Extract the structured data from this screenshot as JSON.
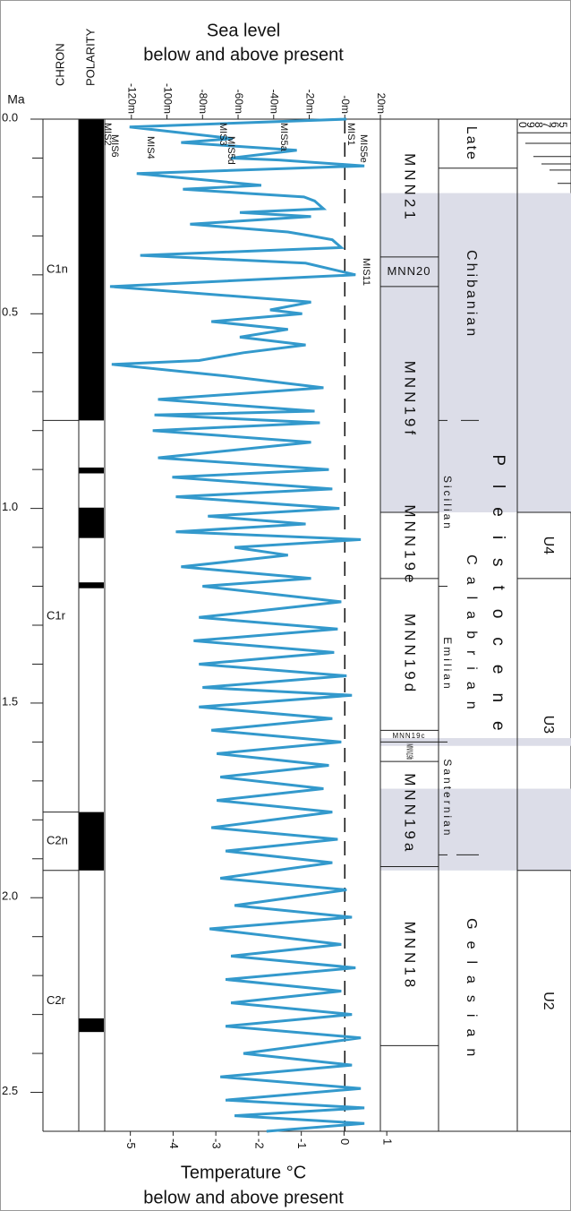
{
  "chart_data": {
    "type": "line",
    "title": "Sea level",
    "subtitle": "below and above present",
    "y_label": "Ma",
    "x2_label": "Temperature °C",
    "x2_sublabel": "below and above present",
    "ylim": [
      0,
      2.6
    ],
    "yticks": [
      {
        "value": 0,
        "label": "0.0"
      },
      0.5,
      {
        "value": 1,
        "label": "1.0"
      },
      1.5,
      {
        "value": 2,
        "label": "2.0"
      },
      2.5
    ],
    "yminor": [
      0.1,
      0.2,
      0.3,
      0.4,
      0.6,
      0.7,
      0.8,
      0.9,
      1.1,
      1.2,
      1.3,
      1.4,
      1.6,
      1.7,
      1.8,
      1.9,
      2.1,
      2.2,
      2.3,
      2.4
    ],
    "xlim": [
      -135,
      20
    ],
    "xticks": [
      {
        "value": -120,
        "label": "-120m"
      },
      {
        "value": -100,
        "label": "-100m"
      },
      {
        "value": -80,
        "label": "-80m"
      },
      {
        "value": -60,
        "label": "-60m"
      },
      {
        "value": -40,
        "label": "-40m"
      },
      {
        "value": -20,
        "label": "-20m"
      },
      {
        "value": 0,
        "label": "-0m"
      },
      {
        "value": 20,
        "label": "20m"
      }
    ],
    "x2lim": [
      -5.6,
      0.85
    ],
    "x2ticks": [
      -5,
      -4,
      -3,
      -2,
      -1,
      0,
      1
    ],
    "zero_line": true,
    "color": "#3399cc",
    "x": [
      0,
      0.02,
      0.05,
      0.06,
      0.08,
      0.1,
      0.105,
      0.12,
      0.14,
      0.17,
      0.18,
      0.19,
      0.2,
      0.21,
      0.23,
      0.24,
      0.25,
      0.27,
      0.29,
      0.3,
      0.31,
      0.33,
      0.35,
      0.37,
      0.4,
      0.43,
      0.47,
      0.49,
      0.5,
      0.52,
      0.54,
      0.56,
      0.58,
      0.6,
      0.62,
      0.63,
      0.66,
      0.69,
      0.72,
      0.75,
      0.76,
      0.78,
      0.8,
      0.83,
      0.87,
      0.9,
      0.92,
      0.95,
      0.97,
      1,
      1.02,
      1.04,
      1.06,
      1.08,
      1.1,
      1.12,
      1.15,
      1.18,
      1.2,
      1.24,
      1.28,
      1.31,
      1.34,
      1.37,
      1.4,
      1.43,
      1.46,
      1.48,
      1.51,
      1.54,
      1.57,
      1.6,
      1.63,
      1.66,
      1.69,
      1.72,
      1.75,
      1.78,
      1.82,
      1.85,
      1.88,
      1.91,
      1.95,
      1.98,
      2.02,
      2.05,
      2.08,
      2.12,
      2.15,
      2.18,
      2.21,
      2.24,
      2.27,
      2.3,
      2.33,
      2.36,
      2.4,
      2.43,
      2.46,
      2.49,
      2.52,
      2.54,
      2.56,
      2.58,
      2.6
    ],
    "values": [
      1,
      -121,
      -63,
      -92,
      -27,
      -64,
      -37,
      11,
      -117,
      -47,
      -91,
      -57,
      -23,
      -17,
      -12,
      -59,
      -19,
      -87,
      -32,
      -19,
      -7,
      -2,
      -115,
      -22,
      6,
      -132,
      -19,
      -42,
      -24,
      -75,
      -32,
      -59,
      -22,
      -57,
      -82,
      -131,
      -67,
      -12,
      -105,
      -17,
      -107,
      -14,
      -108,
      -19,
      -105,
      -9,
      -97,
      -7,
      -95,
      -3,
      -77,
      -22,
      -95,
      9,
      -62,
      -32,
      -92,
      -19,
      -80,
      -2,
      -82,
      -4,
      -85,
      -6,
      -82,
      1,
      -80,
      4,
      -82,
      -7,
      -75,
      -2,
      -72,
      -9,
      -70,
      -12,
      -72,
      -7,
      -75,
      -4,
      -67,
      -7,
      -70,
      1,
      -62,
      4,
      -76,
      -2,
      -64,
      6,
      -67,
      -2,
      -64,
      4,
      -67,
      9,
      -57,
      4,
      -70,
      9,
      -67,
      11,
      -62,
      11,
      -44
    ],
    "annotations": [
      "MIS1",
      "MIS2",
      "MIS3",
      "MIS4",
      "MIS5a",
      "MIS5d",
      "MIS5e",
      "MIS6",
      "MIS11"
    ],
    "chron": {
      "label": "CHRON",
      "zones": [
        {
          "name": "C1n",
          "base": 0.774
        },
        {
          "name": "C1r",
          "base": 1.78
        },
        {
          "name": "C2n",
          "base": 1.93
        },
        {
          "name": "C2r",
          "base": 2.6
        }
      ]
    },
    "polarity": {
      "label": "POLARITY",
      "color": "#000000",
      "normal": [
        [
          0,
          0.774
        ],
        [
          0.895,
          0.91
        ],
        [
          0.998,
          1.076
        ],
        [
          1.19,
          1.205
        ],
        [
          1.78,
          1.93
        ],
        [
          2.31,
          2.345
        ]
      ]
    },
    "shading": [
      [
        0.19,
        1.01
      ],
      [
        1.59,
        1.61
      ],
      [
        1.72,
        1.93
      ]
    ],
    "shading_color": "#dcdde8",
    "mnn_zones": [
      {
        "name": "MNN21",
        "base": 0.354
      },
      {
        "name": "MNN20",
        "base": 0.43
      },
      {
        "name": "MNN19f",
        "base": 1.01
      },
      {
        "name": "MNN19e",
        "base": 1.18
      },
      {
        "name": "MNN19d",
        "base": 1.57
      },
      {
        "name": "MNN19c",
        "base": 1.6
      },
      {
        "name": "MNN19b",
        "base": 1.65
      },
      {
        "name": "MNN19a",
        "base": 1.92
      },
      {
        "name": "MNN18",
        "base": 2.38
      },
      {
        "name": null,
        "base": 2.6
      }
    ],
    "epoch": "Pleistocene",
    "stages": [
      {
        "name": "Late",
        "base": 0.126
      },
      {
        "name": "Chibanian",
        "base": 0.774
      },
      {
        "name": "Calabrian",
        "base": 1.89
      },
      {
        "name": "Gelasian",
        "base": 2.6
      }
    ],
    "substages": [
      {
        "name": "Sicilian",
        "top": 0.774,
        "base": 1.2
      },
      {
        "name": "Emilian",
        "base": 1.6
      },
      {
        "name": "Santernian",
        "base": 1.89
      }
    ],
    "units": [
      {
        "name": "0",
        "base": 0.035
      },
      {
        "name": "9",
        "base": 0.062
      },
      {
        "name": "8",
        "base": 0.096
      },
      {
        "name": "7",
        "base": 0.115
      },
      {
        "name": "6",
        "base": 0.131
      },
      {
        "name": "5",
        "base": 0.165
      },
      {
        "name": null,
        "base": 1.01
      },
      {
        "name": "U4",
        "base": 1.18
      },
      {
        "name": "U3",
        "base": 1.93
      },
      {
        "name": "U2",
        "base": 2.6
      }
    ]
  }
}
